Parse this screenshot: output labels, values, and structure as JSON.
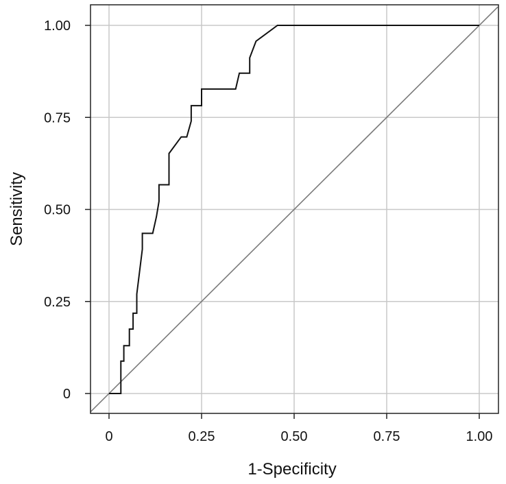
{
  "chart_data": {
    "type": "line",
    "title": "",
    "xlabel": "1-Specificity",
    "ylabel": "Sensitivity",
    "xlim": [
      -0.05,
      1.05
    ],
    "ylim": [
      -0.055,
      1.055
    ],
    "xticks": [
      {
        "value": 0,
        "label": "0"
      },
      {
        "value": 0.25,
        "label": "0.25"
      },
      {
        "value": 0.5,
        "label": "0.50"
      },
      {
        "value": 0.75,
        "label": "0.75"
      },
      {
        "value": 1.0,
        "label": "1.00"
      }
    ],
    "yticks": [
      {
        "value": 0,
        "label": "0"
      },
      {
        "value": 0.25,
        "label": "0.25"
      },
      {
        "value": 0.5,
        "label": "0.50"
      },
      {
        "value": 0.75,
        "label": "0.75"
      },
      {
        "value": 1.0,
        "label": "1.00"
      }
    ],
    "grid": true,
    "legend": "none",
    "colors": {
      "grid": "#c8c8c8",
      "roc_line": "#111111",
      "reference_line": "#7a7a7a",
      "frame": "#222222"
    },
    "series": [
      {
        "kind": "roc-curve",
        "x": [
          0,
          0.032,
          0.032,
          0.04,
          0.04,
          0.055,
          0.055,
          0.065,
          0.065,
          0.075,
          0.075,
          0.09,
          0.09,
          0.118,
          0.128,
          0.135,
          0.135,
          0.162,
          0.162,
          0.195,
          0.21,
          0.222,
          0.222,
          0.25,
          0.25,
          0.342,
          0.352,
          0.37,
          0.38,
          0.38,
          0.397,
          0.455,
          1.0
        ],
        "y": [
          0,
          0,
          0.088,
          0.088,
          0.13,
          0.13,
          0.175,
          0.175,
          0.218,
          0.218,
          0.27,
          0.392,
          0.435,
          0.435,
          0.48,
          0.522,
          0.567,
          0.567,
          0.652,
          0.697,
          0.697,
          0.74,
          0.782,
          0.782,
          0.827,
          0.827,
          0.87,
          0.87,
          0.87,
          0.912,
          0.957,
          1.0,
          1.0
        ]
      },
      {
        "kind": "reference-diagonal",
        "x": [
          -0.05,
          1.05
        ],
        "y": [
          -0.05,
          1.05
        ]
      }
    ]
  }
}
